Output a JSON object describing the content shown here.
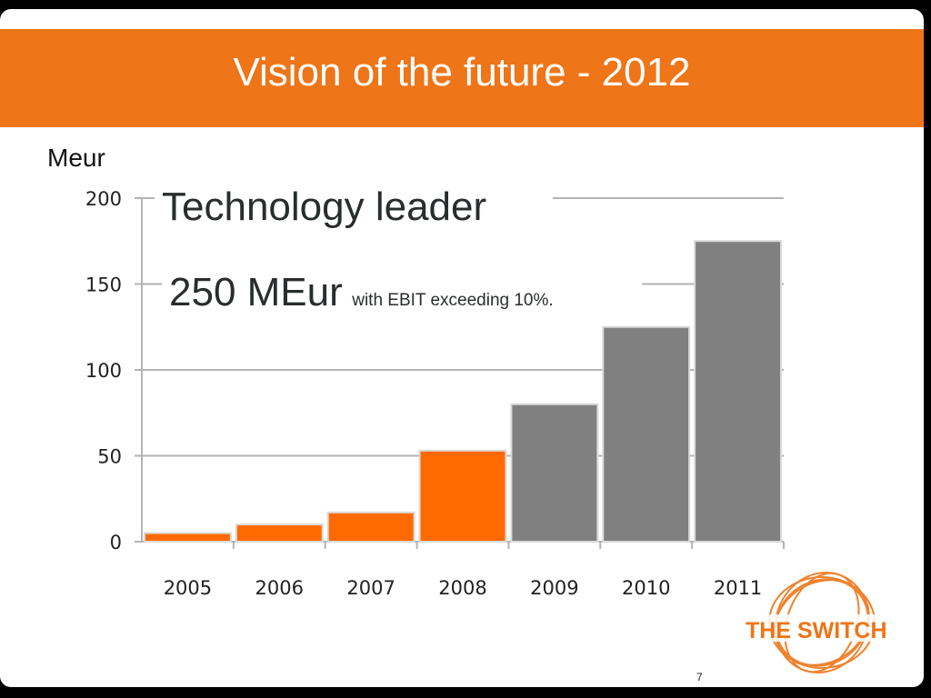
{
  "slide": {
    "title": "Vision of the future - 2012",
    "unit_label": "Meur",
    "page_number": "7",
    "logo_text": "THE SWITCH"
  },
  "annotations": {
    "line1": "Technology leader",
    "line2_big": "250 MEur",
    "line2_small": "with EBIT exceeding 10%."
  },
  "colors": {
    "accent": "#ee7518",
    "actual_bar": "#ff6a00",
    "forecast_bar": "#808080",
    "grid": "#b3b3b3"
  },
  "chart_data": {
    "type": "bar",
    "categories": [
      "2005",
      "2006",
      "2007",
      "2008",
      "2009",
      "2010",
      "2011"
    ],
    "values": [
      5,
      10,
      17,
      53,
      80,
      125,
      175
    ],
    "bar_colors": [
      "#ff6a00",
      "#ff6a00",
      "#ff6a00",
      "#ff6a00",
      "#808080",
      "#808080",
      "#808080"
    ],
    "ylabel": "Meur",
    "ylim": [
      0,
      200
    ],
    "yticks": [
      0,
      50,
      100,
      150,
      200
    ],
    "grid": true
  }
}
